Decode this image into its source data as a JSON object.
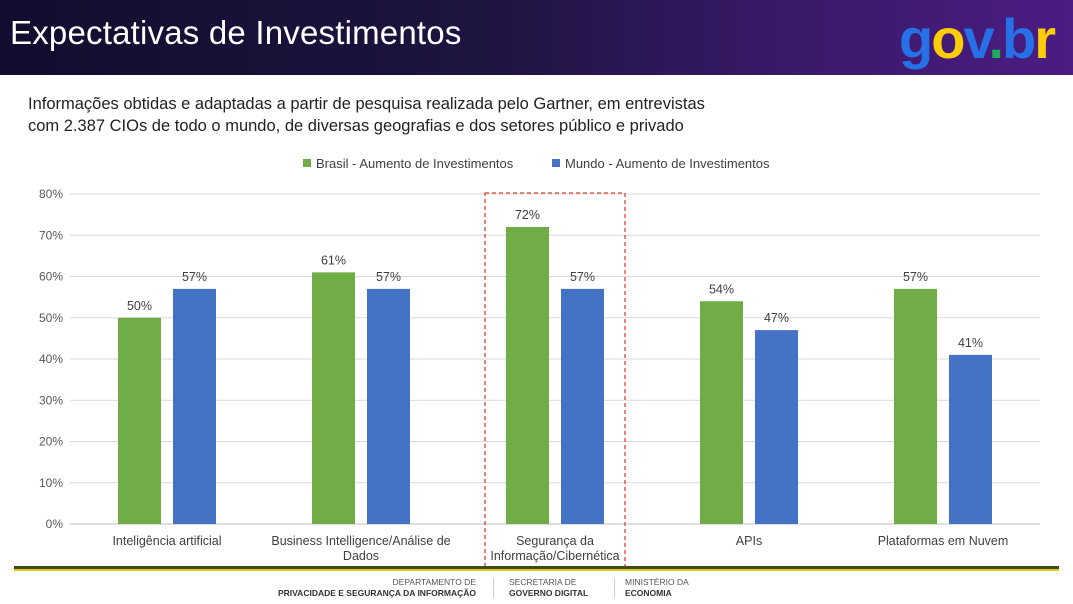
{
  "header": {
    "title": "Expectativas de Investimentos",
    "logo_text": "gov.br"
  },
  "subtitle": {
    "line1": "Informações obtidas e adaptadas a partir de pesquisa realizada pelo Gartner, em entrevistas",
    "line2": "com 2.387 CIOs de todo o mundo, de diversas geografias e dos setores público e privado"
  },
  "colors": {
    "brasil": "#70ad47",
    "mundo": "#4472c4",
    "highlight": "#e0412f"
  },
  "chart_data": {
    "type": "bar",
    "categories": [
      [
        "Inteligência artificial"
      ],
      [
        "Business Intelligence/Análise de",
        "Dados"
      ],
      [
        "Segurança da",
        "Informação/Cibernética"
      ],
      [
        "APIs"
      ],
      [
        "Plataformas em Nuvem"
      ]
    ],
    "series": [
      {
        "name": "Brasil - Aumento de Investimentos",
        "values": [
          50,
          61,
          72,
          54,
          57
        ],
        "labels": [
          "50%",
          "61%",
          "72%",
          "54%",
          "57%"
        ]
      },
      {
        "name": "Mundo - Aumento de Investimentos",
        "values": [
          57,
          57,
          57,
          47,
          41
        ],
        "labels": [
          "57%",
          "57%",
          "57%",
          "47%",
          "41%"
        ]
      }
    ],
    "ylim": [
      0,
      80
    ],
    "yticks": [
      "0%",
      "10%",
      "20%",
      "30%",
      "40%",
      "50%",
      "60%",
      "70%",
      "80%"
    ],
    "grid": true,
    "legend": "top-center",
    "highlighted_category": 2
  },
  "footer": {
    "dept_line1": "DEPARTAMENTO DE",
    "dept_line2": "PRIVACIDADE E SEGURANÇA DA INFORMAÇÃO",
    "sec_line1": "SECRETARIA DE",
    "sec_line2": "GOVERNO DIGITAL",
    "min_line1": "MINISTÉRIO DA",
    "min_line2": "ECONOMIA"
  }
}
